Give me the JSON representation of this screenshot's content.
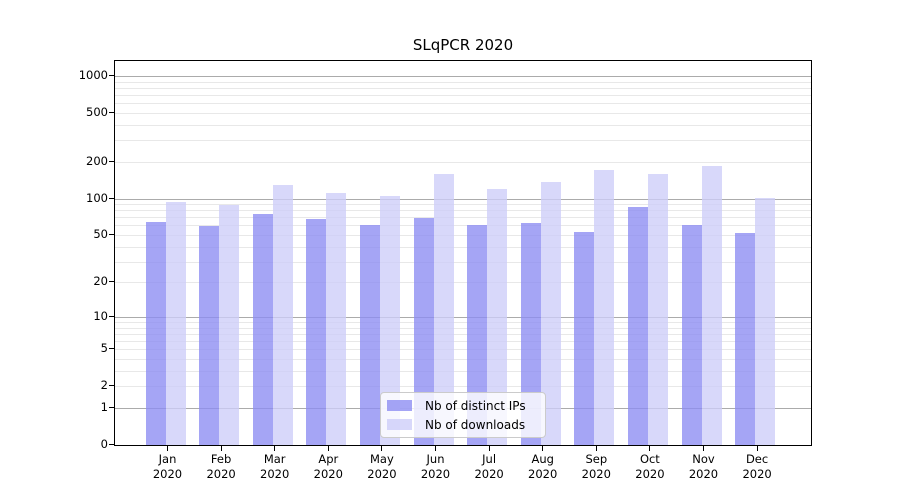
{
  "title": "SLqPCR 2020",
  "chart_data": {
    "type": "bar",
    "title": "SLqPCR 2020",
    "categories": [
      "Jan",
      "Feb",
      "Mar",
      "Apr",
      "May",
      "Jun",
      "Jul",
      "Aug",
      "Sep",
      "Oct",
      "Nov",
      "Dec"
    ],
    "year_label": "2020",
    "series": [
      {
        "name": "Nb of distinct IPs",
        "color": "rgba(140,140,242,0.78)",
        "values": [
          64,
          59,
          74,
          68,
          60,
          69,
          61,
          63,
          53,
          85,
          60,
          52
        ]
      },
      {
        "name": "Nb of downloads",
        "color": "rgba(205,205,248,0.78)",
        "values": [
          94,
          88,
          130,
          111,
          104,
          158,
          119,
          136,
          170,
          160,
          184,
          101
        ]
      }
    ],
    "xlabel": "",
    "ylabel": "",
    "yscale": "log1p",
    "ylim": [
      0,
      1320
    ],
    "yticks": [
      0,
      1,
      2,
      5,
      10,
      20,
      50,
      100,
      200,
      500,
      1000
    ],
    "major_grid_values": [
      1,
      10,
      100,
      1000
    ],
    "grid": true,
    "legend_position": "lower center",
    "colors": {
      "distinct_ips_rendered": "#a5a5f4",
      "downloads_rendered": "#d8d8f8",
      "major_grid": "#ababab",
      "minor_grid": "#e8e8e8"
    }
  }
}
